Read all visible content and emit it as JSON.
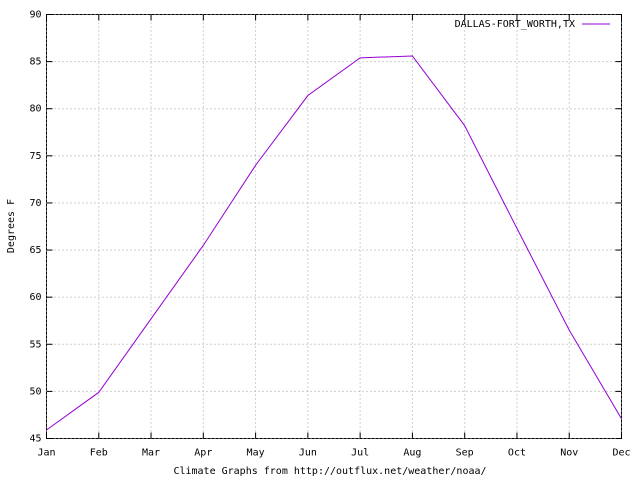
{
  "chart_data": {
    "type": "line",
    "x_label": "Climate Graphs from http://outflux.net/weather/noaa/",
    "y_label": "Degrees F",
    "categories": [
      "Jan",
      "Feb",
      "Mar",
      "Apr",
      "May",
      "Jun",
      "Jul",
      "Aug",
      "Sep",
      "Oct",
      "Nov",
      "Dec"
    ],
    "series": [
      {
        "name": "DALLAS-FORT_WORTH,TX",
        "color": "#9400d3",
        "values": [
          45.9,
          49.9,
          57.7,
          65.5,
          74.0,
          81.4,
          85.4,
          85.6,
          78.2,
          67.3,
          56.5,
          47.1
        ]
      }
    ],
    "ylim": [
      45,
      90
    ],
    "yticks": [
      45,
      50,
      55,
      60,
      65,
      70,
      75,
      80,
      85,
      90
    ],
    "grid": true,
    "legend": "top-right"
  }
}
